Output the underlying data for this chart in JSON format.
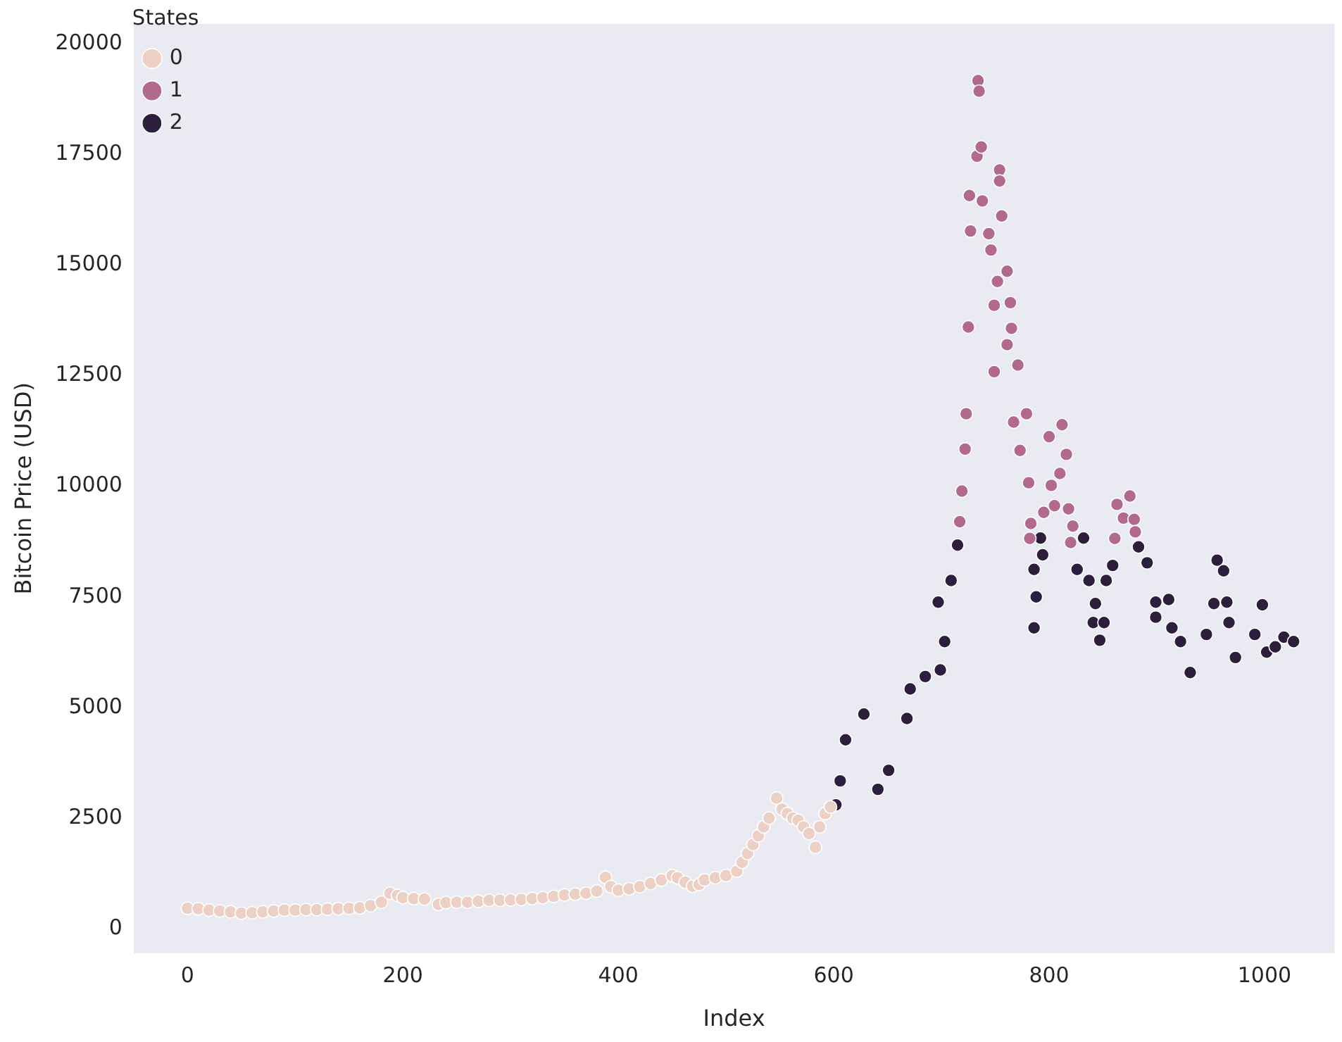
{
  "chart_data": {
    "type": "scatter",
    "xlabel": "Index",
    "ylabel": "Bitcoin Price (USD)",
    "legend_title": "States",
    "legend": "top left",
    "marker": "circle",
    "grid": false,
    "xlim": [
      -50,
      1065
    ],
    "xticks": [
      0,
      200,
      400,
      600,
      800,
      1000
    ],
    "ylim": [
      -550,
      20450
    ],
    "yticks": [
      0,
      2500,
      5000,
      7500,
      10000,
      12500,
      15000,
      17500,
      20000
    ],
    "series": [
      {
        "name": "0",
        "color": "#ecd0c6",
        "x": [
          0,
          10,
          20,
          30,
          40,
          50,
          60,
          70,
          80,
          90,
          100,
          110,
          120,
          130,
          140,
          150,
          160,
          170,
          180,
          188,
          195,
          200,
          210,
          220,
          233,
          240,
          250,
          260,
          270,
          280,
          290,
          300,
          310,
          320,
          330,
          340,
          350,
          360,
          370,
          380,
          388,
          393,
          400,
          410,
          420,
          430,
          440,
          450,
          455,
          462,
          469,
          475,
          480,
          490,
          500,
          510,
          515,
          520,
          525,
          530,
          535,
          540,
          547,
          552,
          557,
          562,
          567,
          572,
          577,
          583,
          587,
          592,
          597
        ],
        "values": [
          460,
          450,
          420,
          400,
          380,
          350,
          360,
          380,
          400,
          420,
          420,
          430,
          430,
          440,
          450,
          460,
          470,
          520,
          600,
          800,
          750,
          700,
          680,
          670,
          550,
          590,
          600,
          600,
          620,
          640,
          640,
          650,
          660,
          680,
          700,
          730,
          760,
          780,
          800,
          850,
          1160,
          950,
          870,
          900,
          950,
          1020,
          1100,
          1200,
          1150,
          1050,
          960,
          1000,
          1100,
          1150,
          1200,
          1300,
          1500,
          1700,
          1900,
          2100,
          2300,
          2500,
          2950,
          2700,
          2600,
          2500,
          2450,
          2300,
          2150,
          1840,
          2300,
          2600,
          2750
        ]
      },
      {
        "name": "1",
        "color": "#b16a8e",
        "x": [
          717,
          719,
          722,
          723,
          725,
          726,
          727,
          733,
          734,
          735,
          737,
          738,
          744,
          746,
          749,
          749,
          752,
          754,
          754,
          756,
          761,
          761,
          764,
          765,
          767,
          771,
          773,
          779,
          781,
          782,
          783,
          795,
          800,
          802,
          805,
          810,
          812,
          816,
          818,
          820,
          822,
          861,
          863,
          869,
          875,
          879,
          880
        ],
        "values": [
          9200,
          9890,
          10840,
          11640,
          13600,
          16570,
          15770,
          17460,
          19170,
          18930,
          17670,
          16450,
          15710,
          15340,
          14090,
          12590,
          14630,
          17150,
          16900,
          16110,
          14860,
          13200,
          14150,
          13570,
          11450,
          12740,
          10810,
          11640,
          10080,
          8820,
          9160,
          9410,
          11120,
          10020,
          9560,
          10290,
          11390,
          10720,
          9490,
          8730,
          9100,
          8820,
          9590,
          9280,
          9780,
          9250,
          8970
        ]
      },
      {
        "name": "2",
        "color": "#2d1e3e",
        "x": [
          602,
          606,
          611,
          628,
          641,
          651,
          668,
          671,
          685,
          697,
          699,
          703,
          709,
          715,
          786,
          786,
          788,
          792,
          794,
          826,
          832,
          837,
          841,
          843,
          847,
          851,
          853,
          859,
          883,
          891,
          899,
          899,
          911,
          914,
          922,
          931,
          946,
          953,
          956,
          962,
          965,
          967,
          973,
          991,
          998,
          1002,
          1010,
          1018,
          1027
        ],
        "values": [
          2800,
          3340,
          4270,
          4850,
          3150,
          3580,
          4750,
          5420,
          5700,
          7380,
          5850,
          6490,
          7870,
          8670,
          6800,
          8120,
          7500,
          8830,
          8450,
          8120,
          8830,
          7870,
          6920,
          7350,
          6520,
          6920,
          7870,
          8210,
          8630,
          8270,
          7380,
          7040,
          7440,
          6800,
          6490,
          5790,
          6650,
          7350,
          8330,
          8090,
          7380,
          6920,
          6130,
          6650,
          7320,
          6250,
          6370,
          6590,
          6490
        ]
      }
    ]
  }
}
